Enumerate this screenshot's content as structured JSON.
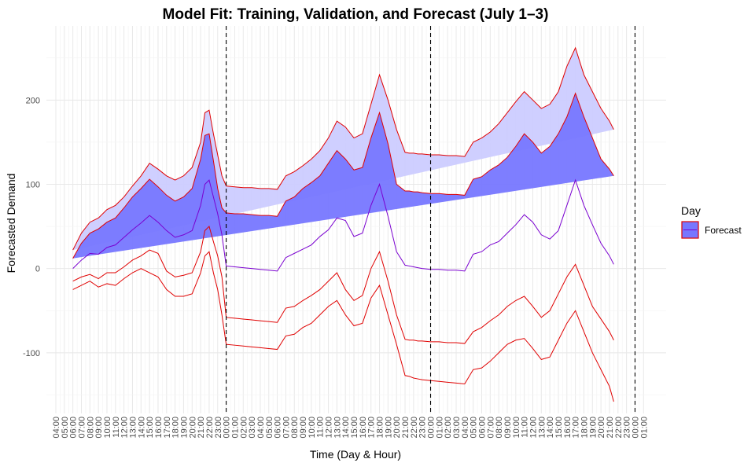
{
  "chart_data": {
    "type": "area",
    "title": "Model Fit: Training, Validation, and Forecast (July 1–3)",
    "xlabel": "Time (Day & Hour)",
    "ylabel": "Forecasted Demand",
    "ylim": [
      -172,
      288
    ],
    "y_ticks": [
      -100,
      0,
      100,
      200
    ],
    "grid": true,
    "legend": {
      "title": "Day",
      "placement": "right",
      "entries": [
        "Forecast"
      ]
    },
    "colors": {
      "outer_band": "#ccccff",
      "inner_band": "#7777ff",
      "band_edge": "#e00000",
      "mean_line": "#7a00d0",
      "vline": "#000000",
      "grid_major": "#e8e8e8",
      "grid_minor": "#f4f4f4"
    },
    "x_tick_labels": [
      "04:00",
      "05:00",
      "06:00",
      "07:00",
      "08:00",
      "09:00",
      "10:00",
      "11:00",
      "12:00",
      "13:00",
      "14:00",
      "15:00",
      "16:00",
      "17:00",
      "18:00",
      "19:00",
      "20:00",
      "21:00",
      "22:00",
      "23:00",
      "00:00",
      "01:00",
      "02:00",
      "03:00",
      "04:00",
      "05:00",
      "06:00",
      "07:00",
      "08:00",
      "09:00",
      "10:00",
      "11:00",
      "12:00",
      "13:00",
      "14:00",
      "15:00",
      "16:00",
      "17:00",
      "18:00",
      "19:00",
      "20:00",
      "21:00",
      "22:00",
      "23:00",
      "00:00",
      "01:00",
      "02:00",
      "03:00",
      "04:00",
      "05:00",
      "06:00",
      "07:00",
      "08:00",
      "09:00",
      "10:00",
      "11:00",
      "12:00",
      "13:00",
      "14:00",
      "15:00",
      "16:00",
      "17:00",
      "18:00",
      "19:00",
      "20:00",
      "21:00",
      "22:00",
      "23:00",
      "00:00",
      "01:00"
    ],
    "vlines_at_tick_index": [
      20,
      44,
      68
    ],
    "series": [
      {
        "name": "Forecast",
        "x_tick_index": [
          2,
          3,
          4,
          5,
          6,
          7,
          8,
          9,
          10,
          11,
          12,
          13,
          14,
          15,
          16,
          17,
          17.5,
          18,
          18.5,
          19,
          19.5,
          20,
          21,
          22,
          23,
          24,
          25,
          26,
          27,
          28,
          29,
          30,
          31,
          32,
          33,
          34,
          35,
          36,
          37,
          38,
          39,
          40,
          41,
          41.5,
          42,
          42.5,
          43,
          44,
          45,
          46,
          47,
          48,
          49,
          50,
          51,
          52,
          53,
          54,
          55,
          56,
          57,
          58,
          59,
          60,
          61,
          62,
          63,
          64,
          65,
          65.5,
          66,
          66.5,
          67,
          68
        ],
        "mean": [
          0,
          10,
          18,
          17,
          25,
          28,
          37,
          46,
          54,
          63,
          55,
          45,
          37,
          40,
          45,
          75,
          100,
          105,
          85,
          65,
          40,
          3,
          2,
          1,
          0,
          -1,
          -2,
          -3,
          13,
          18,
          23,
          28,
          38,
          46,
          60,
          57,
          38,
          42,
          75,
          100,
          62,
          20,
          4,
          3,
          2,
          1,
          0,
          -1,
          -1,
          -2,
          -2,
          -3,
          17,
          20,
          28,
          32,
          42,
          52,
          64,
          55,
          40,
          35,
          45,
          75,
          105,
          75,
          52,
          30,
          15,
          5
        ],
        "inner_upper": [
          12,
          30,
          42,
          47,
          55,
          60,
          72,
          85,
          95,
          106,
          97,
          87,
          80,
          85,
          95,
          130,
          158,
          160,
          128,
          95,
          72,
          66,
          65,
          65,
          64,
          63,
          63,
          62,
          80,
          85,
          95,
          102,
          110,
          125,
          140,
          130,
          117,
          120,
          155,
          185,
          148,
          100,
          92,
          92,
          91,
          91,
          90,
          89,
          89,
          88,
          88,
          87,
          106,
          109,
          117,
          123,
          132,
          145,
          160,
          150,
          137,
          145,
          160,
          180,
          208,
          180,
          155,
          130,
          118,
          110
        ],
        "inner_lower": [
          -15,
          -10,
          -7,
          -12,
          -5,
          -5,
          2,
          10,
          15,
          22,
          18,
          -3,
          -10,
          -8,
          -5,
          20,
          45,
          50,
          32,
          15,
          -10,
          -58,
          -59,
          -60,
          -61,
          -62,
          -63,
          -64,
          -47,
          -45,
          -38,
          -32,
          -25,
          -15,
          -5,
          -25,
          -38,
          -32,
          0,
          20,
          -15,
          -55,
          -84,
          -85,
          -85,
          -86,
          -86,
          -87,
          -87,
          -88,
          -88,
          -89,
          -75,
          -70,
          -62,
          -55,
          -45,
          -38,
          -33,
          -45,
          -58,
          -50,
          -30,
          -10,
          5,
          -20,
          -45,
          -60,
          -75,
          -85
        ],
        "outer_upper": [
          22,
          42,
          55,
          60,
          70,
          75,
          85,
          98,
          110,
          125,
          118,
          110,
          105,
          110,
          120,
          150,
          185,
          188,
          160,
          135,
          110,
          98,
          97,
          96,
          96,
          95,
          95,
          94,
          110,
          115,
          122,
          130,
          140,
          155,
          175,
          168,
          155,
          160,
          195,
          230,
          200,
          165,
          138,
          137,
          137,
          136,
          136,
          135,
          135,
          134,
          134,
          133,
          150,
          155,
          162,
          172,
          185,
          198,
          210,
          200,
          190,
          195,
          210,
          240,
          262,
          230,
          210,
          190,
          175,
          165
        ],
        "outer_lower": [
          -25,
          -20,
          -15,
          -22,
          -18,
          -20,
          -12,
          -5,
          0,
          -5,
          -10,
          -25,
          -33,
          -33,
          -30,
          -5,
          15,
          20,
          -5,
          -25,
          -55,
          -90,
          -91,
          -92,
          -93,
          -94,
          -95,
          -96,
          -80,
          -78,
          -70,
          -65,
          -55,
          -45,
          -38,
          -55,
          -68,
          -65,
          -35,
          -20,
          -55,
          -90,
          -127,
          -128,
          -130,
          -131,
          -132,
          -133,
          -134,
          -135,
          -136,
          -137,
          -120,
          -118,
          -110,
          -100,
          -90,
          -85,
          -83,
          -95,
          -108,
          -105,
          -85,
          -65,
          -50,
          -75,
          -100,
          -120,
          -140,
          -158
        ]
      }
    ]
  }
}
